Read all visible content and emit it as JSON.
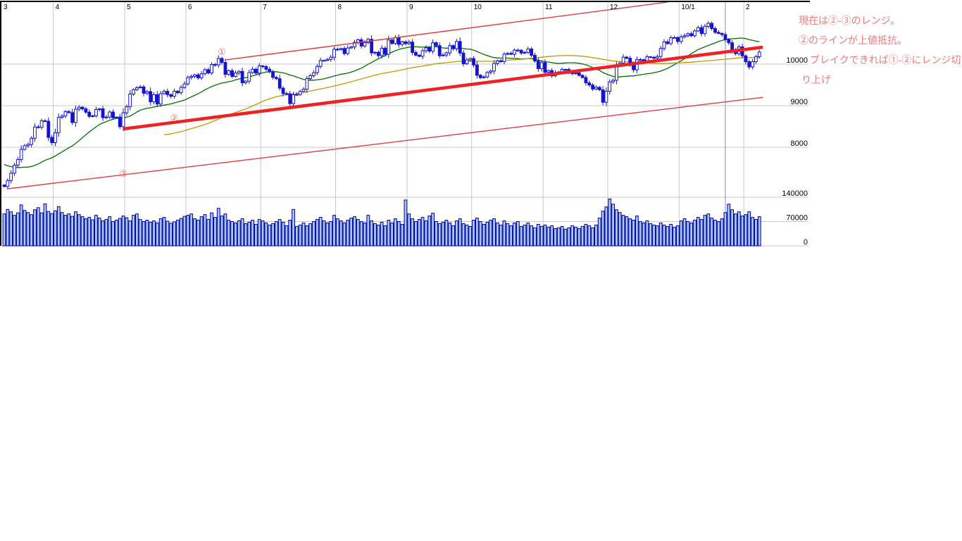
{
  "page": {
    "background": "#FFFFFF"
  },
  "chart_data": {
    "type": "candlestick+volume",
    "title": "",
    "months": [
      {
        "label": "3",
        "start": 0
      },
      {
        "label": "4",
        "start": 15
      },
      {
        "label": "5",
        "start": 36
      },
      {
        "label": "6",
        "start": 54
      },
      {
        "label": "7",
        "start": 76
      },
      {
        "label": "8",
        "start": 98
      },
      {
        "label": "9",
        "start": 119
      },
      {
        "label": "10",
        "start": 138
      },
      {
        "label": "11",
        "start": 159
      },
      {
        "label": "12",
        "start": 178
      },
      {
        "label": "10/1",
        "start": 199
      },
      {
        "label": "2",
        "start": 218
      }
    ],
    "price_axis": {
      "ticks": [
        10000,
        9000,
        8000
      ]
    },
    "volume_axis": {
      "ticks": [
        140000,
        70000,
        0
      ]
    },
    "first_open": 7090,
    "closes": [
      7055,
      7198,
      7376,
      7569,
      7704,
      7950,
      8036,
      8066,
      8216,
      8488,
      8480,
      8636,
      8626,
      8236,
      8110,
      8351,
      8719,
      8750,
      8858,
      8833,
      8595,
      8916,
      8964,
      8924,
      8843,
      8743,
      8755,
      8908,
      8925,
      8711,
      8727,
      8847,
      8708,
      8726,
      8494,
      8828,
      8977,
      9280,
      9386,
      9433,
      9452,
      9299,
      9340,
      9094,
      9265,
      9039,
      9290,
      9345,
      9264,
      9226,
      9347,
      9311,
      9439,
      9523,
      9678,
      9704,
      9742,
      9669,
      9768,
      9866,
      9787,
      9991,
      9981,
      10136,
      10040,
      9753,
      9841,
      9704,
      9786,
      9826,
      9550,
      9590,
      9796,
      9877,
      9783,
      9958,
      9940,
      9876,
      9816,
      9681,
      9648,
      9421,
      9291,
      9287,
      9050,
      9262,
      9269,
      9344,
      9395,
      9652,
      9723,
      9793,
      9945,
      10089,
      10087,
      10113,
      10165,
      10357,
      10352,
      10375,
      10253,
      10388,
      10412,
      10524,
      10585,
      10435,
      10517,
      10597,
      10269,
      10285,
      10204,
      10383,
      10238,
      10581,
      10497,
      10640,
      10474,
      10534,
      10493,
      10530,
      10280,
      10215,
      10187,
      10321,
      10393,
      10312,
      10514,
      10444,
      10202,
      10218,
      10271,
      10444,
      10371,
      10544,
      10266,
      10010,
      10100,
      10133,
      9979,
      9732,
      9674,
      9692,
      9800,
      9832,
      10016,
      10077,
      10060,
      10239,
      10258,
      10237,
      10337,
      10333,
      10267,
      10283,
      10363,
      10212,
      10075,
      9891,
      10035,
      9803,
      9844,
      9717,
      9789,
      9809,
      9871,
      9872,
      9804,
      9770,
      9791,
      9730,
      9677,
      9549,
      9498,
      9402,
      9442,
      9383,
      9082,
      9346,
      9572,
      9609,
      9978,
      10023,
      10168,
      10140,
      10005,
      9863,
      10107,
      10106,
      10083,
      10177,
      10164,
      10142,
      10183,
      10378,
      10536,
      10494,
      10634,
      10638,
      10546,
      10655,
      10682,
      10731,
      10682,
      10798,
      10879,
      10735,
      10908,
      10982,
      10855,
      10765,
      10738,
      10710,
      10591,
      10513,
      10325,
      10252,
      10414,
      10198,
      10057,
      9932,
      10058,
      10180,
      10290
    ],
    "volumes": [
      92000,
      105000,
      98000,
      88000,
      95000,
      118000,
      102000,
      96000,
      90000,
      104000,
      110000,
      95000,
      121000,
      99000,
      93000,
      101000,
      113000,
      96000,
      88000,
      92000,
      85000,
      98000,
      90000,
      84000,
      78000,
      82000,
      75000,
      88000,
      80000,
      72000,
      76000,
      84000,
      70000,
      74000,
      79000,
      86000,
      81000,
      72000,
      88000,
      92000,
      76000,
      70000,
      74000,
      68000,
      72000,
      66000,
      78000,
      82000,
      71000,
      65000,
      69000,
      74000,
      79000,
      85000,
      88000,
      92000,
      78000,
      74000,
      84000,
      90000,
      76000,
      95000,
      82000,
      108000,
      86000,
      92000,
      74000,
      70000,
      66000,
      72000,
      78000,
      64000,
      68000,
      74000,
      62000,
      76000,
      72000,
      66000,
      60000,
      64000,
      70000,
      76000,
      68000,
      58000,
      74000,
      105000,
      56000,
      60000,
      66000,
      58000,
      64000,
      70000,
      76000,
      82000,
      72000,
      66000,
      70000,
      88000,
      78000,
      72000,
      66000,
      74000,
      80000,
      84000,
      76000,
      70000,
      66000,
      88000,
      72000,
      64000,
      60000,
      68000,
      58000,
      74000,
      66000,
      78000,
      70000,
      62000,
      132000,
      92000,
      78000,
      70000,
      76000,
      82000,
      72000,
      86000,
      94000,
      70000,
      64000,
      68000,
      74000,
      66000,
      58000,
      72000,
      78000,
      64000,
      60000,
      56000,
      74000,
      80000,
      70000,
      62000,
      68000,
      74000,
      78000,
      66000,
      60000,
      72000,
      64000,
      58000,
      66000,
      70000,
      56000,
      60000,
      66000,
      58000,
      52000,
      62000,
      56000,
      60000,
      54000,
      58000,
      50000,
      52000,
      56000,
      48000,
      52000,
      58000,
      54000,
      50000,
      56000,
      62000,
      58000,
      52000,
      60000,
      80000,
      100000,
      112000,
      135000,
      120000,
      104000,
      96000,
      88000,
      84000,
      78000,
      74000,
      86000,
      70000,
      66000,
      72000,
      64000,
      60000,
      58000,
      66000,
      60000,
      56000,
      62000,
      54000,
      58000,
      72000,
      78000,
      70000,
      66000,
      74000,
      82000,
      76000,
      88000,
      92000,
      80000,
      74000,
      70000,
      78000,
      96000,
      120000,
      104000,
      92000,
      98000,
      86000,
      90000,
      98000,
      82000,
      76000,
      84000
    ],
    "moving_averages": [
      {
        "name": "ma-short",
        "period": 25,
        "color": "#007000"
      },
      {
        "name": "ma-long",
        "period": 75,
        "color": "#C89600"
      }
    ],
    "ma_seed_closes": [
      8440,
      8230,
      8106,
      7994,
      7873,
      7825,
      7949,
      7901,
      7945,
      7969,
      7871,
      7750,
      7676,
      7558,
      7534,
      7416,
      7376,
      7268,
      7461,
      7568,
      7621,
      7569,
      7509,
      7376,
      7280,
      7173,
      7086
    ],
    "trendlines": [
      {
        "id": "line-1",
        "style": "thin",
        "label": "①",
        "from": {
          "i": 65,
          "p": 10100
        },
        "to": {
          "i": 195,
          "p": 11492
        },
        "label_pos": {
          "i": 64,
          "p": 10305
        }
      },
      {
        "id": "line-2",
        "style": "thick",
        "label": "②",
        "from": {
          "i": 35,
          "p": 8441
        },
        "to": {
          "i": 223,
          "p": 10407
        },
        "label_pos": {
          "i": 50,
          "p": 8712
        }
      },
      {
        "id": "line-3",
        "style": "thin",
        "label": "③",
        "from": {
          "i": 1,
          "p": 7000
        },
        "to": {
          "i": 223,
          "p": 9200
        },
        "label_pos": {
          "i": 35,
          "p": 7373
        }
      }
    ],
    "cursor_index": 212,
    "annotation": {
      "color": "#F07878",
      "lines": [
        "現在は②-③のレンジ。",
        "②のラインが上値抵抗。",
        "ブレイクできれば①-②にレンジ切",
        "り上げ"
      ]
    },
    "colors": {
      "candle": "#1414C8",
      "candle_up_fill": "#FFFFFF",
      "volume_fill": "#A8C8F2",
      "volume_border": "#0000A0",
      "grid": "#C9C9C9",
      "border": "#000000",
      "thin_line": "#E03C3C",
      "thick_line": "#EE2222",
      "circled_label": "#E87070",
      "cursor": "#8A8AC8",
      "axis_text": "#000000"
    }
  }
}
